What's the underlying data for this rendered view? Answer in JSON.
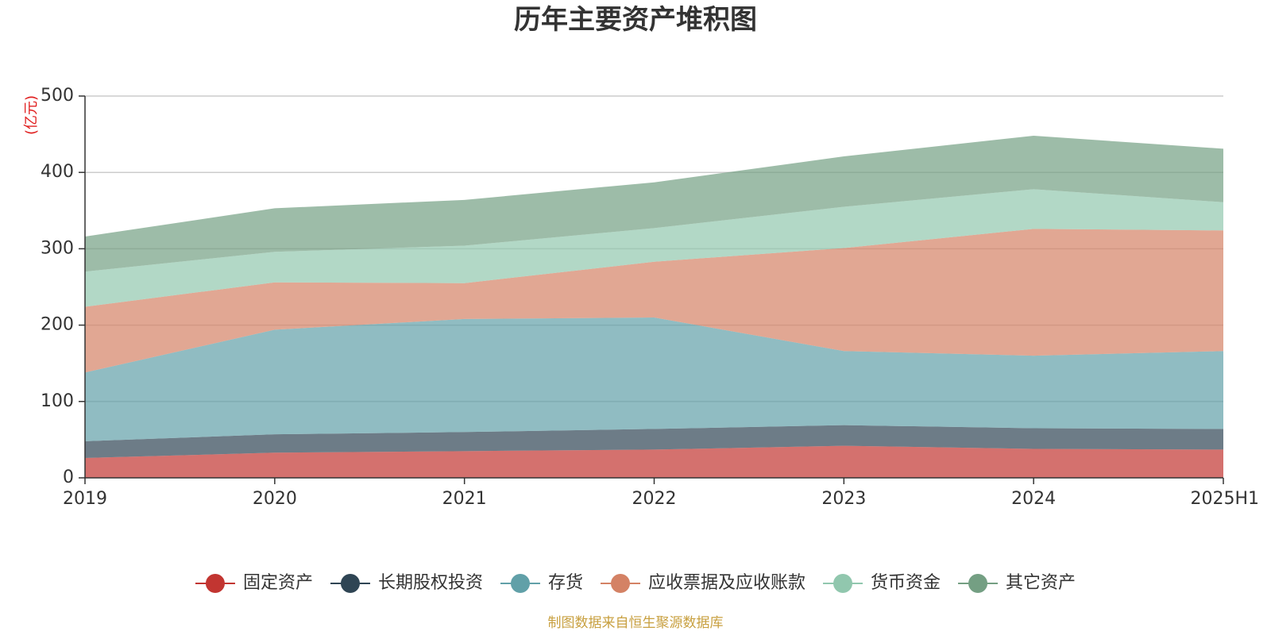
{
  "chart_data": {
    "type": "area",
    "stacked": true,
    "title": "历年主要资产堆积图",
    "unit_label": "(亿元)",
    "categories": [
      "2019",
      "2020",
      "2021",
      "2022",
      "2023",
      "2024",
      "2025H1"
    ],
    "ylim": [
      0,
      500
    ],
    "yticks": [
      0,
      100,
      200,
      300,
      400,
      500
    ],
    "grid": true,
    "legend_position": "bottom",
    "series": [
      {
        "name": "固定资产",
        "color": "#c23531",
        "values": [
          26,
          33,
          35,
          37,
          42,
          38,
          37
        ]
      },
      {
        "name": "长期股权投资",
        "color": "#2f4554",
        "values": [
          22,
          24,
          25,
          27,
          27,
          27,
          27
        ]
      },
      {
        "name": "存货",
        "color": "#61a0a8",
        "values": [
          90,
          137,
          148,
          146,
          97,
          95,
          102
        ]
      },
      {
        "name": "应收票据及应收账款",
        "color": "#d48265",
        "values": [
          86,
          62,
          47,
          73,
          135,
          166,
          158
        ]
      },
      {
        "name": "货币资金",
        "color": "#91c7ae",
        "values": [
          46,
          40,
          49,
          44,
          54,
          52,
          37
        ]
      },
      {
        "name": "其它资产",
        "color": "#749f83",
        "values": [
          46,
          57,
          60,
          60,
          66,
          70,
          70
        ]
      }
    ]
  },
  "footer": {
    "source_text": "制图数据来自恒生聚源数据库"
  }
}
